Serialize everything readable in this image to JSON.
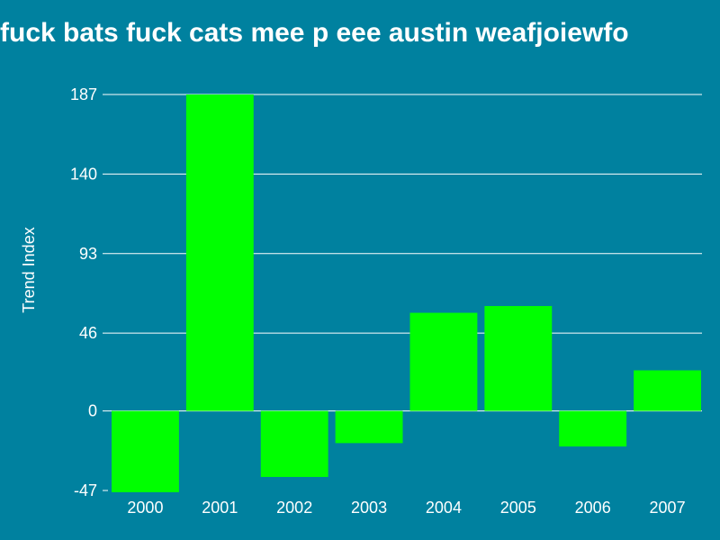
{
  "chart_data": {
    "type": "bar",
    "title": "fuck bats fuck cats mee p eee austin weafjoiewfo",
    "xlabel": "",
    "ylabel": "Trend Index",
    "categories": [
      "2000",
      "2001",
      "2002",
      "2003",
      "2004",
      "2005",
      "2006",
      "2007"
    ],
    "values": [
      -48,
      187,
      -39,
      -19,
      58,
      62,
      -21,
      24
    ],
    "yticks": [
      "-47",
      "0",
      "46",
      "93",
      "140",
      "187"
    ],
    "ylim": [
      -47,
      187
    ],
    "grid": true,
    "colors": {
      "background": "#00819f",
      "bar": "#00ff00",
      "text": "#ffffff",
      "grid": "#ffffff"
    }
  }
}
